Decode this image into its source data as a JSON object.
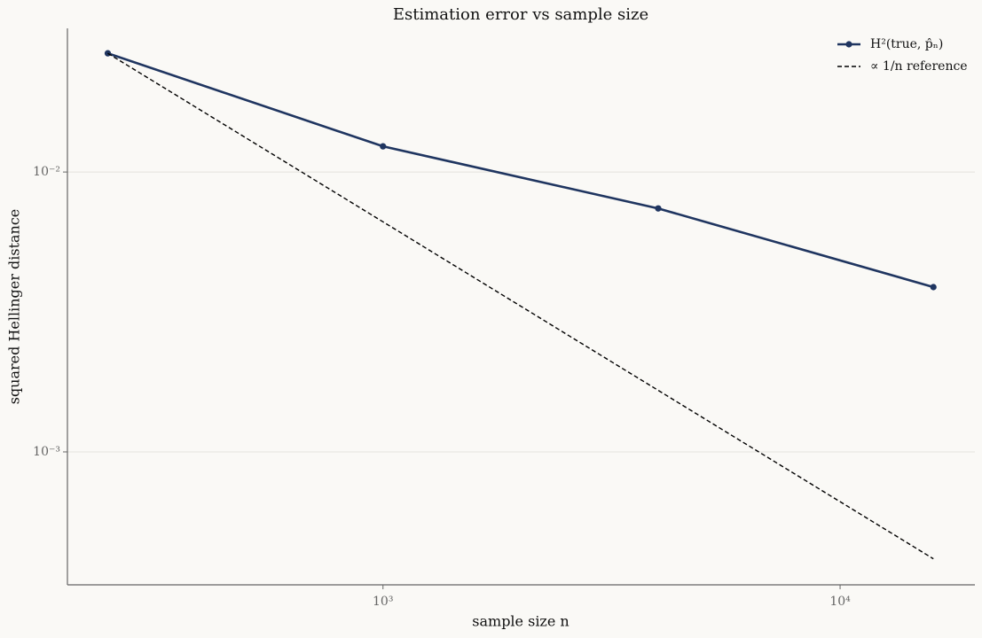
{
  "chart_data": {
    "type": "line",
    "title": "Estimation error vs sample size",
    "xlabel": "sample size n",
    "ylabel": "squared Hellinger distance",
    "x": [
      250,
      1000,
      4000,
      16000
    ],
    "series": [
      {
        "name": "H²(true, p̂ₙ)",
        "color": "#1f3560",
        "values": [
          0.02655,
          0.01235,
          0.00741,
          0.00388
        ],
        "markers": true,
        "dashed": false
      },
      {
        "name": "∝ 1/n reference",
        "color": "#000000",
        "values": [
          0.02655,
          0.006638,
          0.001659,
          0.000415
        ],
        "markers": false,
        "dashed": true
      }
    ],
    "xscale": "log",
    "yscale": "log",
    "xlim": [
      204,
      19720
    ],
    "ylim": [
      0.000335,
      0.0326
    ],
    "xticks": [
      {
        "value": 1000,
        "label": "10³"
      },
      {
        "value": 10000,
        "label": "10⁴"
      }
    ],
    "yticks": [
      {
        "value": 0.001,
        "label": "10⁻³"
      },
      {
        "value": 0.01,
        "label": "10⁻²"
      }
    ],
    "grid": true,
    "legend": "upper right"
  }
}
